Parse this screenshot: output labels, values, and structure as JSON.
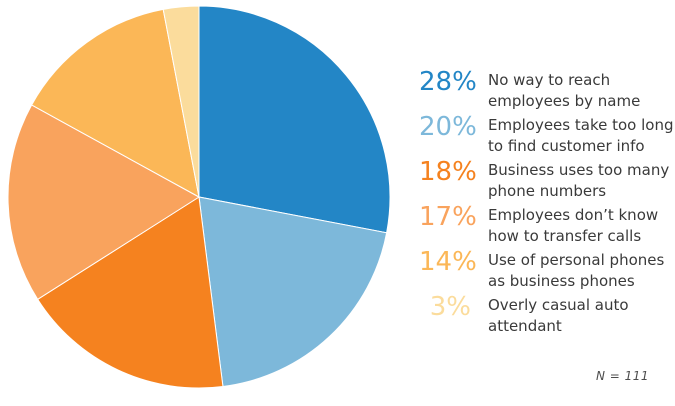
{
  "chart_data": {
    "type": "pie",
    "title": "",
    "start_angle_deg": 0,
    "direction": "clockwise",
    "legend_position": "right",
    "total_pct": 100,
    "slices": [
      {
        "percent_label": "28%",
        "value_pct": 28,
        "color": "#2386c6",
        "label": "No way to reach employees by name",
        "label_lines": [
          "No way to reach",
          "employees by name"
        ]
      },
      {
        "percent_label": "20%",
        "value_pct": 20,
        "color": "#7db8da",
        "label": "Employees take too long to find customer info",
        "label_lines": [
          "Employees take too long",
          "to find customer info"
        ]
      },
      {
        "percent_label": "18%",
        "value_pct": 18,
        "color": "#f5821f",
        "label": "Business uses too many phone numbers",
        "label_lines": [
          "Business uses too many",
          "phone numbers"
        ]
      },
      {
        "percent_label": "17%",
        "value_pct": 17,
        "color": "#f9a35d",
        "label": "Employees don’t know how to transfer calls",
        "label_lines": [
          "Employees don’t know",
          "how to transfer calls"
        ]
      },
      {
        "percent_label": "14%",
        "value_pct": 14,
        "color": "#fbb757",
        "label": "Use of personal phones as business phones",
        "label_lines": [
          "Use of personal phones",
          "as business phones"
        ]
      },
      {
        "percent_label": "3%",
        "value_pct": 3,
        "color": "#fbdc9c",
        "label": "Overly casual auto attendant",
        "label_lines": [
          "Overly casual auto",
          "attendant"
        ]
      }
    ],
    "footnote": "N = 111",
    "label_text_color": "#3a3a3a",
    "footnote_color": "#4d4d4d",
    "background_color": "#ffffff",
    "slice_separator_color": "#ffffff"
  }
}
